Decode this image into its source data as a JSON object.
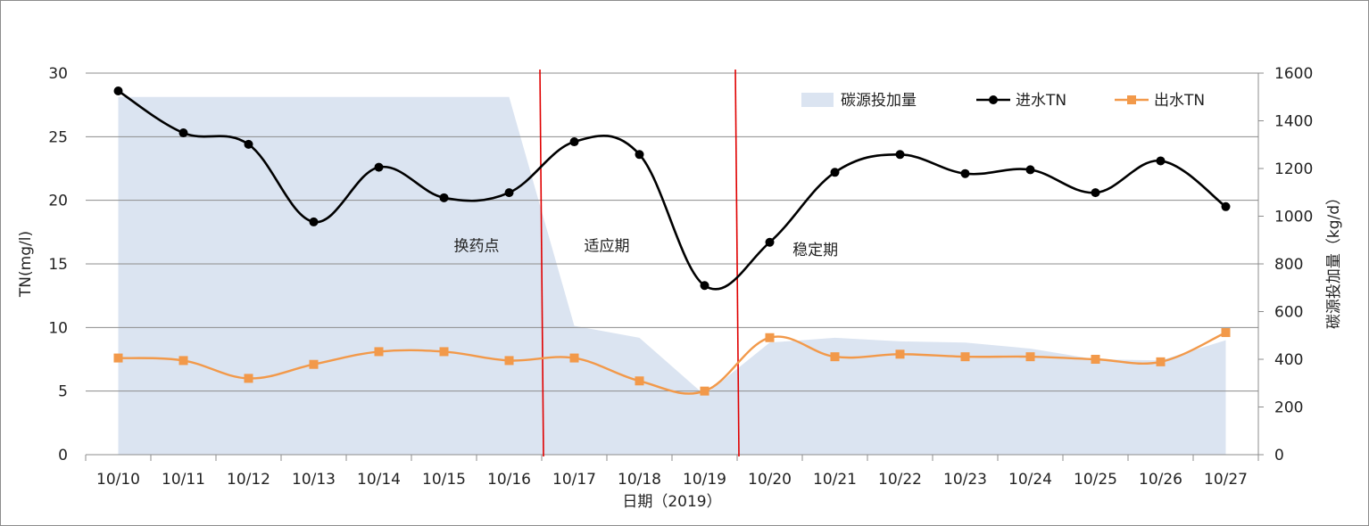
{
  "chart_data": {
    "type": "line",
    "title": "",
    "categories": [
      "10/10",
      "10/11",
      "10/12",
      "10/13",
      "10/14",
      "10/15",
      "10/16",
      "10/17",
      "10/18",
      "10/19",
      "10/20",
      "10/21",
      "10/22",
      "10/23",
      "10/24",
      "10/25",
      "10/26",
      "10/27"
    ],
    "xlabel": "日期（2019）",
    "ylabel": "TN(mg/l)",
    "y2label": "碳源投加量（kg/d）",
    "ylim": [
      0,
      30
    ],
    "y2lim": [
      0,
      1600
    ],
    "yticks": [
      0,
      5,
      10,
      15,
      20,
      25,
      30
    ],
    "y2ticks": [
      0,
      200,
      400,
      600,
      800,
      1000,
      1200,
      1400,
      1600
    ],
    "grid": true,
    "legend_position": "top-right",
    "series": [
      {
        "name": "碳源投加量",
        "type": "area",
        "axis": "right",
        "color": "#dbe4f1",
        "values": [
          1500,
          1500,
          1500,
          1500,
          1500,
          1500,
          1500,
          540,
          490,
          250,
          470,
          490,
          475,
          470,
          445,
          400,
          395,
          480
        ]
      },
      {
        "name": "进水TN",
        "type": "line",
        "axis": "left",
        "color": "#000000",
        "marker": "circle",
        "values": [
          28.6,
          25.3,
          24.4,
          18.3,
          22.6,
          20.2,
          20.6,
          24.6,
          23.6,
          13.3,
          16.7,
          22.2,
          23.6,
          22.1,
          22.4,
          20.6,
          23.1,
          19.5
        ]
      },
      {
        "name": "出水TN",
        "type": "line",
        "axis": "left",
        "color": "#f2994a",
        "marker": "square",
        "values": [
          7.6,
          7.4,
          6.0,
          7.1,
          8.1,
          8.1,
          7.4,
          7.6,
          5.8,
          5.0,
          9.2,
          7.7,
          7.9,
          7.7,
          7.7,
          7.5,
          7.3,
          9.6
        ]
      }
    ],
    "annotations": [
      {
        "text": "换药点",
        "at_category": 5.5,
        "y": 16
      },
      {
        "text": "适应期",
        "at_category": 7.5,
        "y": 16
      },
      {
        "text": "稳定期",
        "at_category": 10.7,
        "y": 15.7
      }
    ],
    "vertical_lines": [
      {
        "at_category": 6.5,
        "color": "#e00000"
      },
      {
        "at_category": 9.5,
        "color": "#e00000"
      }
    ]
  }
}
